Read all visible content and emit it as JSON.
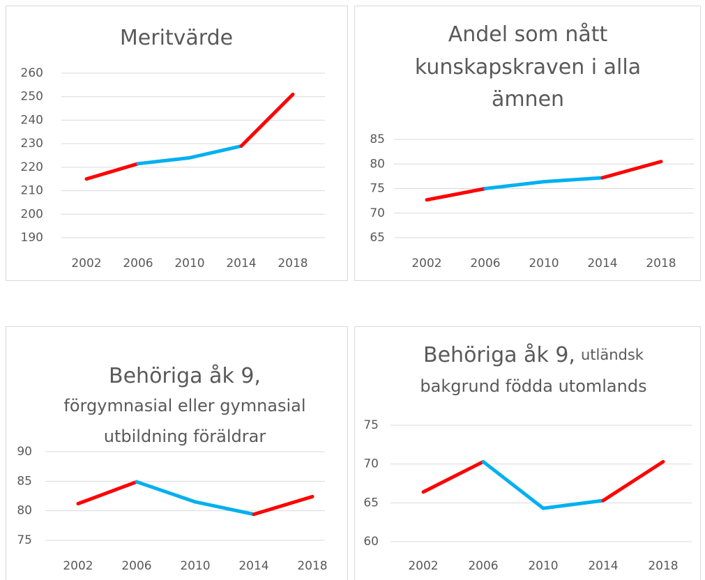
{
  "chart_data": [
    {
      "type": "line",
      "title_lines": [
        [
          "Meritvärde"
        ]
      ],
      "categories": [
        "2002",
        "2006",
        "2010",
        "2014",
        "2018"
      ],
      "values": [
        215,
        221.5,
        224,
        229,
        251
      ],
      "segment_colors": [
        "#ff0000",
        "#00b0f0",
        "#00b0f0",
        "#ff0000"
      ],
      "ylim": [
        190,
        260
      ],
      "yticks": [
        190,
        200,
        210,
        220,
        230,
        240,
        250,
        260
      ],
      "grid": true
    },
    {
      "type": "line",
      "title_lines": [
        [
          "Andel som nått"
        ],
        [
          "kunskapskraven i alla"
        ],
        [
          "ämnen"
        ]
      ],
      "categories": [
        "2002",
        "2006",
        "2010",
        "2014",
        "2018"
      ],
      "values": [
        72.7,
        75,
        76.4,
        77.2,
        80.5
      ],
      "segment_colors": [
        "#ff0000",
        "#00b0f0",
        "#00b0f0",
        "#ff0000"
      ],
      "ylim": [
        65,
        85
      ],
      "yticks": [
        65,
        70,
        75,
        80,
        85
      ],
      "grid": true
    },
    {
      "type": "line",
      "title_lines": [
        [
          "Behöriga åk 9,"
        ],
        [
          "förgymnasial eller gymnasial"
        ],
        [
          "utbildning föräldrar"
        ]
      ],
      "categories": [
        "2002",
        "2006",
        "2010",
        "2014",
        "2018"
      ],
      "values": [
        81.2,
        84.9,
        81.5,
        79.4,
        82.4
      ],
      "segment_colors": [
        "#ff0000",
        "#00b0f0",
        "#00b0f0",
        "#ff0000"
      ],
      "ylim": [
        75,
        90
      ],
      "yticks": [
        75,
        80,
        85,
        90
      ],
      "grid": true
    },
    {
      "type": "line",
      "title_lines": [
        [
          "Behöriga åk 9,",
          "utländsk"
        ],
        [
          "bakgrund födda utomlands"
        ]
      ],
      "categories": [
        "2002",
        "2006",
        "2010",
        "2014",
        "2018"
      ],
      "values": [
        66.4,
        70.3,
        64.3,
        65.3,
        70.3
      ],
      "segment_colors": [
        "#ff0000",
        "#00b0f0",
        "#00b0f0",
        "#ff0000"
      ],
      "ylim": [
        60,
        75
      ],
      "yticks": [
        60,
        65,
        70,
        75
      ],
      "grid": true
    }
  ]
}
